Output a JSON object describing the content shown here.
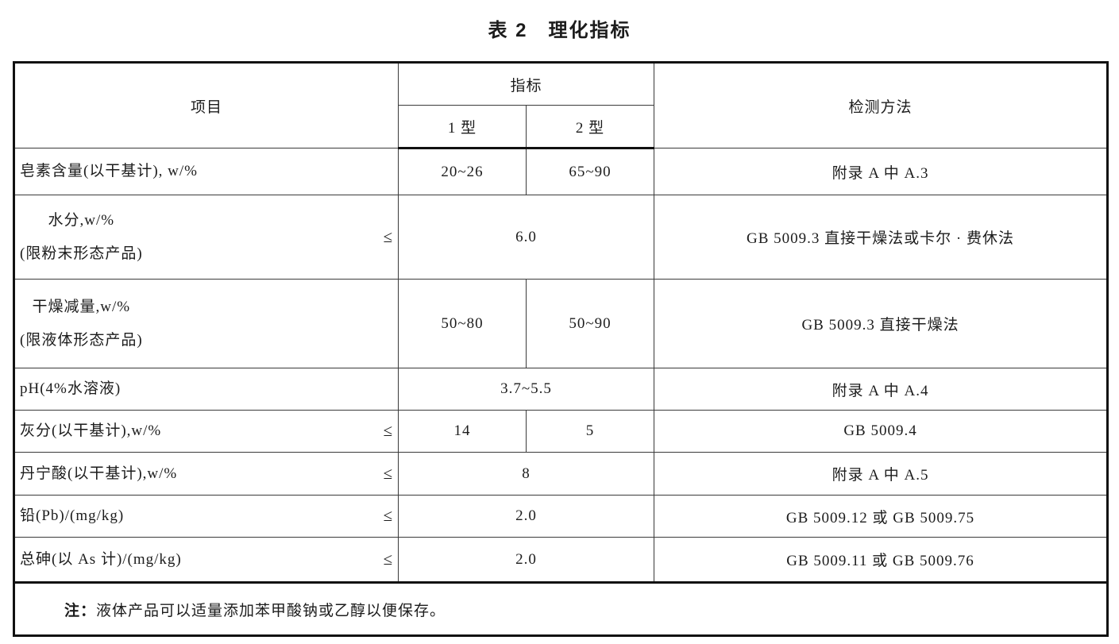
{
  "title": "表 2　理化指标",
  "table": {
    "headers": {
      "item": "项目",
      "indicator": "指标",
      "type1": "1 型",
      "type2": "2 型",
      "method": "检测方法"
    },
    "rows": [
      {
        "item_line1": "皂素含量(以干基计), w/%",
        "item_line2": "",
        "limit": "",
        "value_type1": "20~26",
        "value_type2": "65~90",
        "value_merged": "",
        "method": "附录 A 中 A.3"
      },
      {
        "item_line1": "水分,w/%",
        "item_line2": "(限粉末形态产品)",
        "limit": "≤",
        "value_type1": "",
        "value_type2": "",
        "value_merged": "6.0",
        "method": "GB 5009.3 直接干燥法或卡尔 · 费休法"
      },
      {
        "item_line1": "干燥减量,w/%",
        "item_line2": "(限液体形态产品)",
        "limit": "",
        "value_type1": "50~80",
        "value_type2": "50~90",
        "value_merged": "",
        "method": "GB 5009.3 直接干燥法"
      },
      {
        "item_line1": "pH(4%水溶液)",
        "item_line2": "",
        "limit": "",
        "value_type1": "",
        "value_type2": "",
        "value_merged": "3.7~5.5",
        "method": "附录 A 中 A.4"
      },
      {
        "item_line1": "灰分(以干基计),w/%",
        "item_line2": "",
        "limit": "≤",
        "value_type1": "14",
        "value_type2": "5",
        "value_merged": "",
        "method": "GB 5009.4"
      },
      {
        "item_line1": "丹宁酸(以干基计),w/%",
        "item_line2": "",
        "limit": "≤",
        "value_type1": "",
        "value_type2": "",
        "value_merged": "8",
        "method": "附录 A 中 A.5"
      },
      {
        "item_line1": "铅(Pb)/(mg/kg)",
        "item_line2": "",
        "limit": "≤",
        "value_type1": "",
        "value_type2": "",
        "value_merged": "2.0",
        "method": "GB 5009.12 或 GB 5009.75"
      },
      {
        "item_line1": "总砷(以 As 计)/(mg/kg)",
        "item_line2": "",
        "limit": "≤",
        "value_type1": "",
        "value_type2": "",
        "value_merged": "2.0",
        "method": "GB 5009.11 或 GB 5009.76"
      }
    ],
    "note_label": "注：",
    "note_text": "液体产品可以适量添加苯甲酸钠或乙醇以便保存。"
  }
}
